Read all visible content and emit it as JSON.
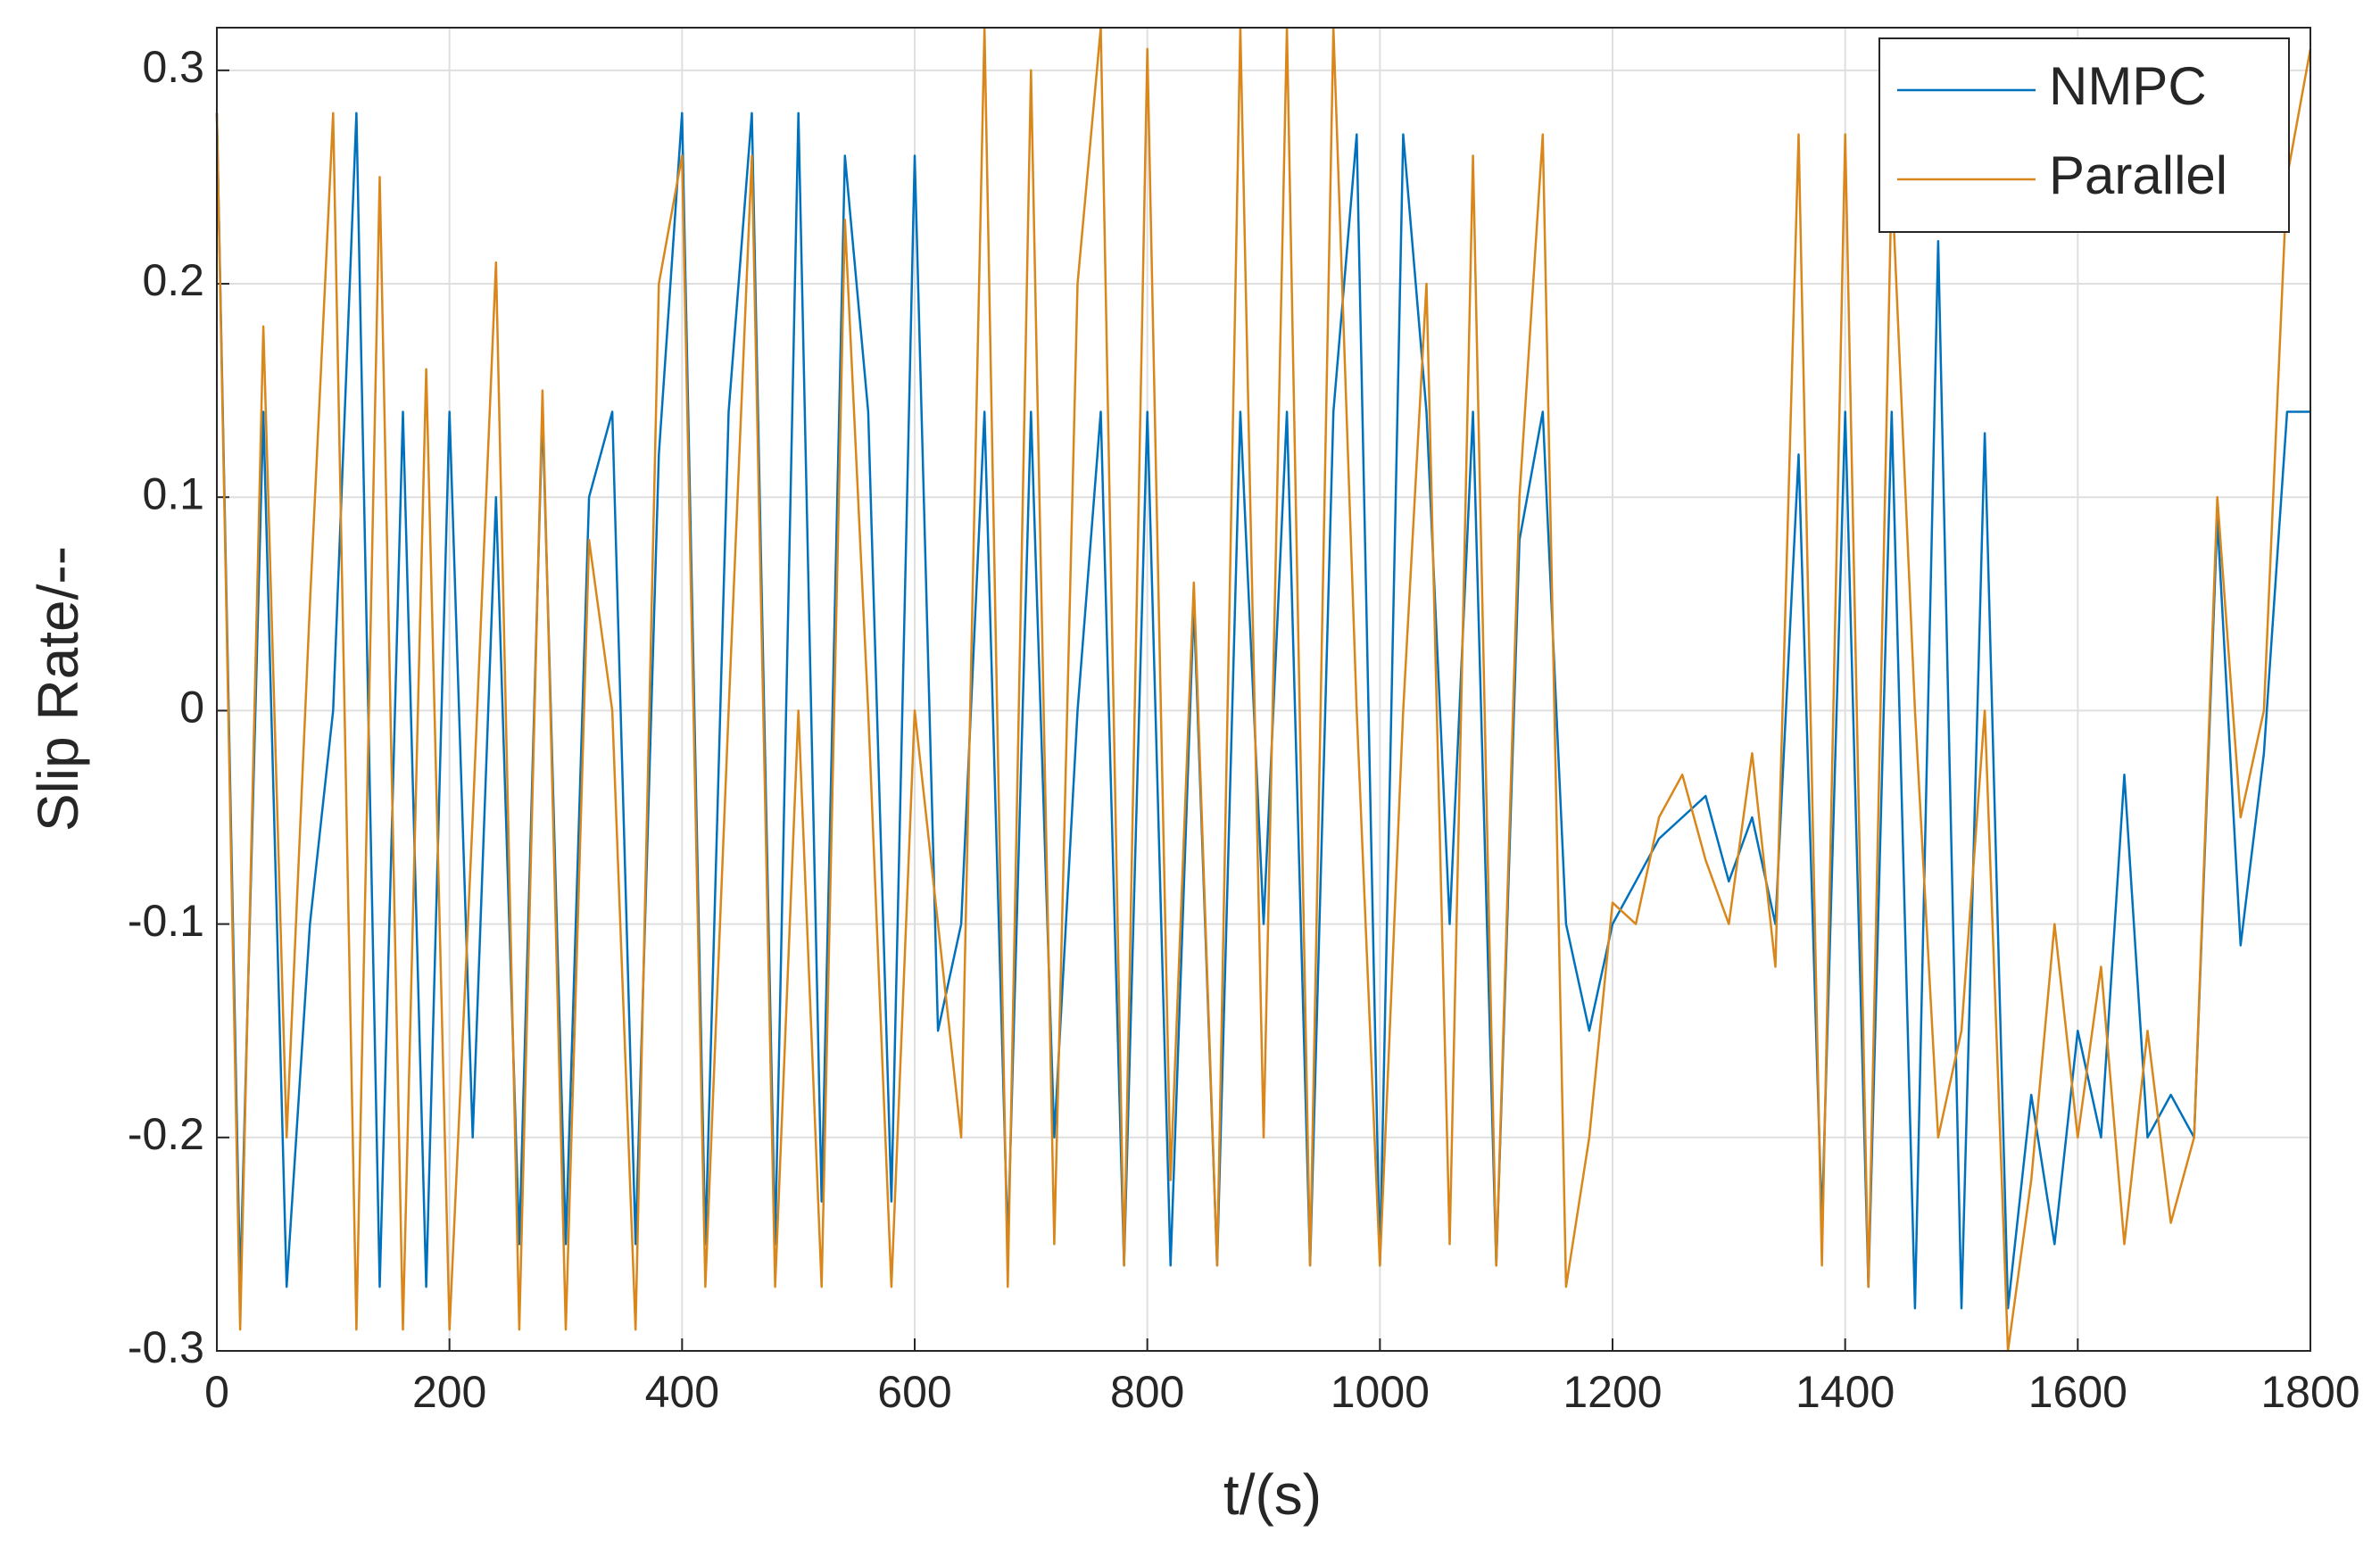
{
  "chart_data": {
    "type": "line",
    "xlabel": "t/(s)",
    "ylabel": "Slip Rate/--",
    "x": [
      0,
      20,
      40,
      60,
      80,
      100,
      120,
      140,
      160,
      180,
      200,
      220,
      240,
      260,
      280,
      300,
      320,
      340,
      360,
      380,
      400,
      420,
      440,
      460,
      480,
      500,
      520,
      540,
      560,
      580,
      600,
      620,
      640,
      660,
      680,
      700,
      720,
      740,
      760,
      780,
      800,
      820,
      840,
      860,
      880,
      900,
      920,
      940,
      960,
      980,
      1000,
      1020,
      1040,
      1060,
      1080,
      1100,
      1120,
      1140,
      1160,
      1180,
      1200,
      1220,
      1240,
      1260,
      1280,
      1300,
      1320,
      1340,
      1360,
      1380,
      1400,
      1420,
      1440,
      1460,
      1480,
      1500,
      1520,
      1540,
      1560,
      1580,
      1600,
      1620,
      1640,
      1660,
      1680,
      1700,
      1720,
      1740,
      1760,
      1780,
      1800
    ],
    "series": [
      {
        "name": "NMPC",
        "color": "#0072bd",
        "values": [
          0.28,
          -0.27,
          0.14,
          -0.27,
          -0.1,
          0.0,
          0.28,
          -0.27,
          0.14,
          -0.27,
          0.14,
          -0.2,
          0.1,
          -0.25,
          0.14,
          -0.25,
          0.1,
          0.14,
          -0.25,
          0.12,
          0.28,
          -0.25,
          0.14,
          0.28,
          -0.25,
          0.28,
          -0.23,
          0.26,
          0.14,
          -0.23,
          0.26,
          -0.15,
          -0.1,
          0.14,
          -0.25,
          0.14,
          -0.2,
          0.0,
          0.14,
          -0.26,
          0.14,
          -0.26,
          0.05,
          -0.26,
          0.14,
          -0.1,
          0.14,
          -0.26,
          0.14,
          0.27,
          -0.26,
          0.27,
          0.14,
          -0.1,
          0.14,
          -0.26,
          0.08,
          0.14,
          -0.1,
          -0.15,
          -0.1,
          -0.08,
          -0.06,
          -0.05,
          -0.04,
          -0.08,
          -0.05,
          -0.1,
          0.12,
          -0.24,
          0.14,
          -0.27,
          0.14,
          -0.28,
          0.22,
          -0.28,
          0.13,
          -0.28,
          -0.18,
          -0.25,
          -0.15,
          -0.2,
          -0.03,
          -0.2,
          -0.18,
          -0.2,
          0.09,
          -0.11,
          -0.02,
          0.14,
          0.14
        ]
      },
      {
        "name": "Parallel",
        "color": "#d9861a",
        "values": [
          0.28,
          -0.29,
          0.18,
          -0.2,
          0.05,
          0.28,
          -0.29,
          0.25,
          -0.29,
          0.16,
          -0.29,
          -0.05,
          0.21,
          -0.29,
          0.15,
          -0.29,
          0.08,
          0.0,
          -0.29,
          0.2,
          0.26,
          -0.27,
          0.0,
          0.26,
          -0.27,
          0.0,
          -0.27,
          0.23,
          0.0,
          -0.27,
          0.0,
          -0.1,
          -0.2,
          0.32,
          -0.27,
          0.3,
          -0.25,
          0.2,
          0.32,
          -0.26,
          0.31,
          -0.22,
          0.06,
          -0.26,
          0.32,
          -0.2,
          0.32,
          -0.26,
          0.32,
          0.0,
          -0.26,
          0.0,
          0.2,
          -0.25,
          0.26,
          -0.26,
          0.1,
          0.27,
          -0.27,
          -0.2,
          -0.09,
          -0.1,
          -0.05,
          -0.03,
          -0.07,
          -0.1,
          -0.02,
          -0.12,
          0.27,
          -0.26,
          0.27,
          -0.27,
          0.25,
          0.0,
          -0.2,
          -0.15,
          0.0,
          -0.3,
          -0.22,
          -0.1,
          -0.2,
          -0.12,
          -0.25,
          -0.15,
          -0.24,
          -0.2,
          0.1,
          -0.05,
          0.0,
          0.25,
          0.31
        ]
      }
    ],
    "xlim": [
      0,
      1800
    ],
    "ylim": [
      -0.3,
      0.32
    ],
    "xticks": [
      0,
      200,
      400,
      600,
      800,
      1000,
      1200,
      1400,
      1600,
      1800
    ],
    "yticks": [
      -0.3,
      -0.2,
      -0.1,
      0,
      0.1,
      0.2,
      0.3
    ],
    "grid": true,
    "legend": "upper right"
  }
}
